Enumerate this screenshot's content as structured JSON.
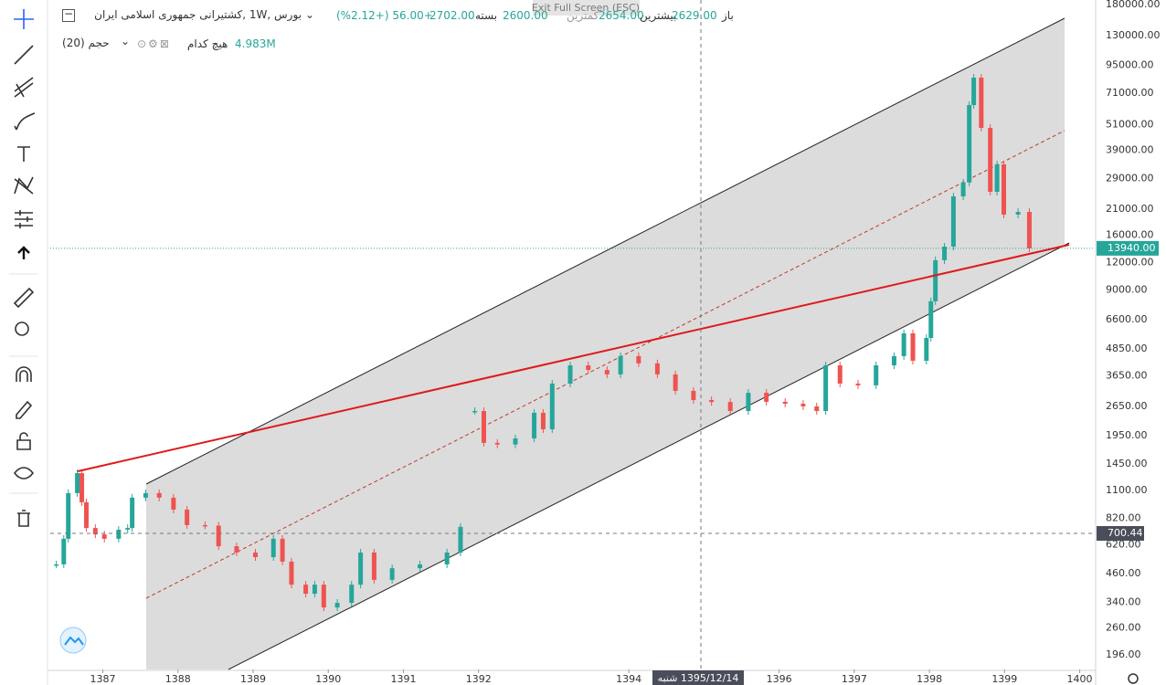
{
  "header": {
    "symbol": "بورس ,1W ,کشتیرانی جمهوری اسلامی ایران",
    "ohlc": [
      {
        "label": "باز",
        "value": "2629.00"
      },
      {
        "label": "بیشترین",
        "value": "2654.00"
      },
      {
        "label": "کمترین",
        "value": "2600.00"
      },
      {
        "label": "بسته",
        "value": "2702.00"
      }
    ],
    "change": "(%2.12+) 56.00+",
    "volume_title": "حجم (20)",
    "volume_ma": "هیچ کدام",
    "volume_value": "4.983M"
  },
  "exit_fullscreen": "Exit Full Screen (ESC)",
  "chart_data": {
    "type": "candlestick",
    "log_scale": true,
    "grid": true,
    "up_color": "#26a69a",
    "down_color": "#ef5350",
    "x": [
      1386.38,
      1386.48,
      1386.54,
      1386.66,
      1386.72,
      1386.78,
      1386.9,
      1387.02,
      1387.21,
      1387.33,
      1387.39,
      1387.57,
      1387.75,
      1387.94,
      1388.12,
      1388.36,
      1388.54,
      1388.78,
      1389.03,
      1389.27,
      1389.39,
      1389.51,
      1389.7,
      1389.82,
      1389.94,
      1390.12,
      1390.31,
      1390.43,
      1390.61,
      1390.85,
      1391.22,
      1391.58,
      1391.76,
      1391.8,
      1391.95,
      1392.07,
      1392.25,
      1392.49,
      1392.74,
      1392.86,
      1392.98,
      1393.22,
      1393.46,
      1393.71,
      1393.89,
      1394.13,
      1394.38,
      1394.62,
      1394.86,
      1395.1,
      1395.35,
      1395.59,
      1395.83,
      1396.08,
      1396.32,
      1396.5,
      1396.62,
      1396.81,
      1397.05,
      1397.29,
      1397.53,
      1397.66,
      1397.78,
      1397.96,
      1398.02,
      1398.08,
      1398.2,
      1398.32,
      1398.45,
      1398.53,
      1398.59,
      1398.69,
      1398.81,
      1398.9,
      1398.99,
      1399.18,
      1399.33
    ],
    "values": [
      506,
      662,
      1069,
      1318,
      971,
      741,
      693,
      662,
      728,
      741,
      1019,
      1069,
      1019,
      899,
      764,
      760,
      612,
      573,
      546,
      662,
      521,
      409,
      372,
      409,
      322,
      338,
      409,
      573,
      430,
      486,
      506,
      573,
      750,
      null,
      2529,
      1811,
      1780,
      1897,
      2483,
      2089,
      3373,
      4083,
      3890,
      3715,
      4498,
      4169,
      3715,
      3126,
      2838,
      2780,
      2529,
      3062,
      2786,
      2729,
      2655,
      2529,
      4083,
      3373,
      3311,
      4083,
      4498,
      5715,
      4285,
      5445,
      7998,
      12303,
      14190,
      24040,
      27800,
      62660,
      83560,
      49320,
      25230,
      33650,
      19860,
      20420,
      13940
    ],
    "xlim": [
      1386.3,
      1400.2
    ],
    "xticks": [
      1387,
      1388,
      1389,
      1390,
      1391,
      1392,
      1394,
      1396,
      1397,
      1398,
      1399,
      1400
    ],
    "ylim": [
      168,
      188700
    ],
    "yticks": [
      {
        "value": 180000,
        "label": "180000.00"
      },
      {
        "value": 130000,
        "label": "130000.00"
      },
      {
        "value": 95000,
        "label": "95000.00"
      },
      {
        "value": 71000,
        "label": "71000.00"
      },
      {
        "value": 51000,
        "label": "51000.00"
      },
      {
        "value": 39000,
        "label": "39000.00"
      },
      {
        "value": 29000,
        "label": "29000.00"
      },
      {
        "value": 21000,
        "label": "21000.00"
      },
      {
        "value": 16000,
        "label": "16000.00"
      },
      {
        "value": 12000,
        "label": "12000.00"
      },
      {
        "value": 9000,
        "label": "9000.00"
      },
      {
        "value": 6600,
        "label": "6600.00"
      },
      {
        "value": 4850,
        "label": "4850.00"
      },
      {
        "value": 3650,
        "label": "3650.00"
      },
      {
        "value": 2650,
        "label": "2650.00"
      },
      {
        "value": 1950,
        "label": "1950.00"
      },
      {
        "value": 1450,
        "label": "1450.00"
      },
      {
        "value": 1100,
        "label": "1100.00"
      },
      {
        "value": 820,
        "label": "820.00"
      },
      {
        "value": 620,
        "label": "620.00"
      },
      {
        "value": 460,
        "label": "460.00"
      },
      {
        "value": 340,
        "label": "340.00"
      },
      {
        "value": 260,
        "label": "260.00"
      },
      {
        "value": 196,
        "label": "196.00"
      }
    ],
    "last_price": {
      "value": 13940,
      "label": "13940.00"
    },
    "crosshair_price": {
      "value": 700.44,
      "label": "700.44"
    },
    "crosshair_date": "1395/12/14 شنبه"
  }
}
